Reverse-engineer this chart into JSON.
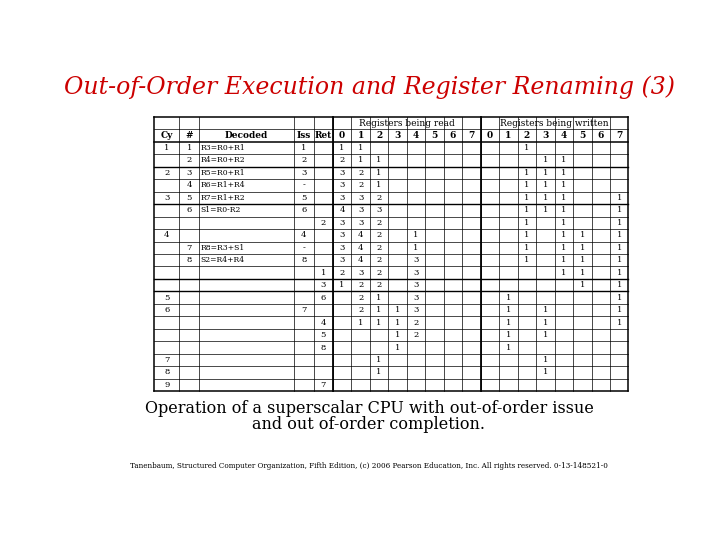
{
  "title": "Out-of-Order Execution and Register Renaming (3)",
  "subtitle_line1": "Operation of a superscalar CPU with out-of-order issue",
  "subtitle_line2": "and out of-order completion.",
  "footnote": "Tanenbaum, Structured Computer Organization, Fifth Edition, (c) 2006 Pearson Education, Inc. All rights reserved. 0-13-148521-0",
  "title_color": "#cc0000",
  "bg_color": "#ffffff",
  "rows": [
    {
      "cy": "1",
      "num": "1",
      "decoded": "R3=R0+R1",
      "iss": "1",
      "ret": "",
      "r0": "1",
      "r1": "1",
      "r2": "",
      "r3": "",
      "r4": "",
      "r5": "",
      "r6": "",
      "r7": "",
      "w0": "",
      "w1": "",
      "w2": "1",
      "w3": "",
      "w4": "",
      "w5": "",
      "w6": "",
      "w7": ""
    },
    {
      "cy": "",
      "num": "2",
      "decoded": "R4=R0+R2",
      "iss": "2",
      "ret": "",
      "r0": "2",
      "r1": "1",
      "r2": "1",
      "r3": "",
      "r4": "",
      "r5": "",
      "r6": "",
      "r7": "",
      "w0": "",
      "w1": "",
      "w2": "",
      "w3": "1",
      "w4": "1",
      "w5": "",
      "w6": "",
      "w7": ""
    },
    {
      "cy": "2",
      "num": "3",
      "decoded": "R5=R0+R1",
      "iss": "3",
      "ret": "",
      "r0": "3",
      "r1": "2",
      "r2": "1",
      "r3": "",
      "r4": "",
      "r5": "",
      "r6": "",
      "r7": "",
      "w0": "",
      "w1": "",
      "w2": "1",
      "w3": "1",
      "w4": "1",
      "w5": "",
      "w6": "",
      "w7": ""
    },
    {
      "cy": "",
      "num": "4",
      "decoded": "R6=R1+R4",
      "iss": "-",
      "ret": "",
      "r0": "3",
      "r1": "2",
      "r2": "1",
      "r3": "",
      "r4": "",
      "r5": "",
      "r6": "",
      "r7": "",
      "w0": "",
      "w1": "",
      "w2": "1",
      "w3": "1",
      "w4": "1",
      "w5": "",
      "w6": "",
      "w7": ""
    },
    {
      "cy": "3",
      "num": "5",
      "decoded": "R7=R1+R2",
      "iss": "5",
      "ret": "",
      "r0": "3",
      "r1": "3",
      "r2": "2",
      "r3": "",
      "r4": "",
      "r5": "",
      "r6": "",
      "r7": "",
      "w0": "",
      "w1": "",
      "w2": "1",
      "w3": "1",
      "w4": "1",
      "w5": "",
      "w6": "",
      "w7": "1"
    },
    {
      "cy": "",
      "num": "6",
      "decoded": "S1=R0-R2",
      "iss": "6",
      "ret": "",
      "r0": "4",
      "r1": "3",
      "r2": "3",
      "r3": "",
      "r4": "",
      "r5": "",
      "r6": "",
      "r7": "",
      "w0": "",
      "w1": "",
      "w2": "1",
      "w3": "1",
      "w4": "1",
      "w5": "",
      "w6": "",
      "w7": "1"
    },
    {
      "cy": "",
      "num": "",
      "decoded": "",
      "iss": "",
      "ret": "2",
      "r0": "3",
      "r1": "3",
      "r2": "2",
      "r3": "",
      "r4": "",
      "r5": "",
      "r6": "",
      "r7": "",
      "w0": "",
      "w1": "",
      "w2": "1",
      "w3": "",
      "w4": "1",
      "w5": "",
      "w6": "",
      "w7": "1"
    },
    {
      "cy": "4",
      "num": "",
      "decoded": "",
      "iss": "4",
      "ret": "",
      "r0": "3",
      "r1": "4",
      "r2": "2",
      "r3": "",
      "r4": "1",
      "r5": "",
      "r6": "",
      "r7": "",
      "w0": "",
      "w1": "",
      "w2": "1",
      "w3": "",
      "w4": "1",
      "w5": "1",
      "w6": "",
      "w7": "1"
    },
    {
      "cy": "",
      "num": "7",
      "decoded": "R8=R3+S1",
      "iss": "-",
      "ret": "",
      "r0": "3",
      "r1": "4",
      "r2": "2",
      "r3": "",
      "r4": "1",
      "r5": "",
      "r6": "",
      "r7": "",
      "w0": "",
      "w1": "",
      "w2": "1",
      "w3": "",
      "w4": "1",
      "w5": "1",
      "w6": "",
      "w7": "1"
    },
    {
      "cy": "",
      "num": "8",
      "decoded": "S2=R4+R4",
      "iss": "8",
      "ret": "",
      "r0": "3",
      "r1": "4",
      "r2": "2",
      "r3": "",
      "r4": "3",
      "r5": "",
      "r6": "",
      "r7": "",
      "w0": "",
      "w1": "",
      "w2": "1",
      "w3": "",
      "w4": "1",
      "w5": "1",
      "w6": "",
      "w7": "1"
    },
    {
      "cy": "",
      "num": "",
      "decoded": "",
      "iss": "",
      "ret": "1",
      "r0": "2",
      "r1": "3",
      "r2": "2",
      "r3": "",
      "r4": "3",
      "r5": "",
      "r6": "",
      "r7": "",
      "w0": "",
      "w1": "",
      "w2": "",
      "w3": "",
      "w4": "1",
      "w5": "1",
      "w6": "",
      "w7": "1"
    },
    {
      "cy": "",
      "num": "",
      "decoded": "",
      "iss": "",
      "ret": "3",
      "r0": "1",
      "r1": "2",
      "r2": "2",
      "r3": "",
      "r4": "3",
      "r5": "",
      "r6": "",
      "r7": "",
      "w0": "",
      "w1": "",
      "w2": "",
      "w3": "",
      "w4": "",
      "w5": "1",
      "w6": "",
      "w7": "1"
    },
    {
      "cy": "5",
      "num": "",
      "decoded": "",
      "iss": "",
      "ret": "6",
      "r0": "",
      "r1": "2",
      "r2": "1",
      "r3": "",
      "r4": "3",
      "r5": "",
      "r6": "",
      "r7": "",
      "w0": "",
      "w1": "1",
      "w2": "",
      "w3": "",
      "w4": "",
      "w5": "",
      "w6": "",
      "w7": "1"
    },
    {
      "cy": "6",
      "num": "",
      "decoded": "",
      "iss": "7",
      "ret": "",
      "r0": "",
      "r1": "2",
      "r2": "1",
      "r3": "1",
      "r4": "3",
      "r5": "",
      "r6": "",
      "r7": "",
      "w0": "",
      "w1": "1",
      "w2": "",
      "w3": "1",
      "w4": "",
      "w5": "",
      "w6": "",
      "w7": "1"
    },
    {
      "cy": "",
      "num": "",
      "decoded": "",
      "iss": "",
      "ret": "4",
      "r0": "",
      "r1": "1",
      "r2": "1",
      "r3": "1",
      "r4": "2",
      "r5": "",
      "r6": "",
      "r7": "",
      "w0": "",
      "w1": "1",
      "w2": "",
      "w3": "1",
      "w4": "",
      "w5": "",
      "w6": "",
      "w7": "1"
    },
    {
      "cy": "",
      "num": "",
      "decoded": "",
      "iss": "",
      "ret": "5",
      "r0": "",
      "r1": "",
      "r2": "",
      "r3": "1",
      "r4": "2",
      "r5": "",
      "r6": "",
      "r7": "",
      "w0": "",
      "w1": "1",
      "w2": "",
      "w3": "1",
      "w4": "",
      "w5": "",
      "w6": "",
      "w7": ""
    },
    {
      "cy": "",
      "num": "",
      "decoded": "",
      "iss": "",
      "ret": "8",
      "r0": "",
      "r1": "",
      "r2": "",
      "r3": "1",
      "r4": "",
      "r5": "",
      "r6": "",
      "r7": "",
      "w0": "",
      "w1": "1",
      "w2": "",
      "w3": "",
      "w4": "",
      "w5": "",
      "w6": "",
      "w7": ""
    },
    {
      "cy": "7",
      "num": "",
      "decoded": "",
      "iss": "",
      "ret": "",
      "r0": "",
      "r1": "",
      "r2": "1",
      "r3": "",
      "r4": "",
      "r5": "",
      "r6": "",
      "r7": "",
      "w0": "",
      "w1": "",
      "w2": "",
      "w3": "1",
      "w4": "",
      "w5": "",
      "w6": "",
      "w7": ""
    },
    {
      "cy": "8",
      "num": "",
      "decoded": "",
      "iss": "",
      "ret": "",
      "r0": "",
      "r1": "",
      "r2": "1",
      "r3": "",
      "r4": "",
      "r5": "",
      "r6": "",
      "r7": "",
      "w0": "",
      "w1": "",
      "w2": "",
      "w3": "1",
      "w4": "",
      "w5": "",
      "w6": "",
      "w7": ""
    },
    {
      "cy": "9",
      "num": "",
      "decoded": "",
      "iss": "",
      "ret": "7",
      "r0": "",
      "r1": "",
      "r2": "",
      "r3": "",
      "r4": "",
      "r5": "",
      "r6": "",
      "r7": "",
      "w0": "",
      "w1": "",
      "w2": "",
      "w3": "",
      "w4": "",
      "w5": "",
      "w6": "",
      "w7": ""
    }
  ]
}
